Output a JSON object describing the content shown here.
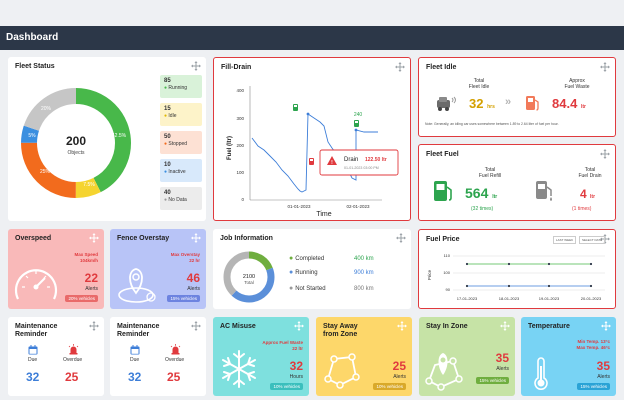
{
  "header": {
    "title": "Dashboard"
  },
  "fleet_status": {
    "title": "Fleet Status",
    "center_value": "200",
    "center_label": "Objects",
    "segments": [
      {
        "label": "42.5%",
        "color": "#48b84a"
      },
      {
        "label": "7.5%",
        "color": "#f5d430"
      },
      {
        "label": "25%",
        "color": "#f26b1d"
      },
      {
        "label": "5%",
        "color": "#3b8fe0"
      },
      {
        "label": "20%",
        "color": "#c6c6c6"
      }
    ],
    "legend": [
      {
        "count": "85",
        "label": "Running",
        "bg": "#d9f2d9",
        "dot": "#48b84a"
      },
      {
        "count": "15",
        "label": "Idle",
        "bg": "#fdf3c9",
        "dot": "#f5d430"
      },
      {
        "count": "50",
        "label": "Stopped",
        "bg": "#fde1d4",
        "dot": "#f26b1d"
      },
      {
        "count": "10",
        "label": "Inactive",
        "bg": "#d8e9fb",
        "dot": "#3b8fe0"
      },
      {
        "count": "40",
        "label": "No Data",
        "bg": "#ececec",
        "dot": "#9a9a9a"
      }
    ]
  },
  "fill_drain": {
    "title": "Fill-Drain",
    "ylabel": "Fuel (ltr)",
    "xlabel": "Time",
    "yticks": [
      "0",
      "100",
      "200",
      "300",
      "400"
    ],
    "xticks": [
      "01-01-2023",
      "02-01-2023"
    ],
    "annotation_240": "240",
    "drain_label": "Drain",
    "drain_value": "122.50 ltr",
    "drain_time": "01-01-2023 03:00 PM"
  },
  "fleet_idle": {
    "title": "Fleet Idle",
    "total_label_1": "Total",
    "total_label_2": "Fleet Idle",
    "total_value": "32",
    "total_unit": "hrs",
    "waste_label_1": "Approx",
    "waste_label_2": "Fuel Waste",
    "waste_value": "84.4",
    "waste_unit": "ltr",
    "note": "Note: Generally, an idling car uses somewhere between 1.89 to 2.64 liter of fuel per hour."
  },
  "fleet_fuel": {
    "title": "Fleet Fuel",
    "refill_label_1": "Total",
    "refill_label_2": "Fuel Refill",
    "refill_value": "564",
    "refill_unit": "ltr",
    "refill_times": "(32 times)",
    "drain_label_1": "Total",
    "drain_label_2": "Fuel Drain",
    "drain_value": "4",
    "drain_unit": "ltr",
    "drain_times": "(1 times)"
  },
  "overspeed": {
    "title": "Overspeed",
    "max_label_1": "Max Speed",
    "max_label_2": "104km/h",
    "alerts_value": "22",
    "alerts_label": "Alerts",
    "pill": "20% vehicles"
  },
  "fence_overstay": {
    "title": "Fence Overstay",
    "max_label_1": "Max Overstay",
    "max_label_2": "22 hr",
    "alerts_value": "46",
    "alerts_label": "Alerts",
    "pill": "15% vehicles"
  },
  "job_information": {
    "title": "Job Information",
    "center_value": "2100",
    "center_label": "Total",
    "items": [
      {
        "label": "Completed",
        "value": "400 km",
        "color": "#6fae3f"
      },
      {
        "label": "Running",
        "value": "900 km",
        "color": "#5b8fd9"
      },
      {
        "label": "Not Started",
        "value": "800 km",
        "color": "#9a9a9a"
      }
    ]
  },
  "fuel_price": {
    "title": "Fuel Price",
    "ylabel": "Price",
    "yticks": [
      "90",
      "100",
      "110"
    ],
    "xticks": [
      "17-01-2023",
      "18-01-2023",
      "19-01-2023",
      "20-01-2023"
    ],
    "legend_1": "LAST WEEK",
    "legend_2": "SELECT DATE"
  },
  "maintenance_1": {
    "title_1": "Maintenance",
    "title_2": "Reminder",
    "due_label": "Due",
    "due_value": "32",
    "overdue_label": "Overdue",
    "overdue_value": "25"
  },
  "maintenance_2": {
    "title_1": "Maintenance",
    "title_2": "Reminder",
    "due_label": "Due",
    "due_value": "32",
    "overdue_label": "Overdue",
    "overdue_value": "25"
  },
  "ac_misuse": {
    "title": "AC Misuse",
    "max_label_1": "Approx Fuel Waste",
    "max_label_2": "22 ltr",
    "value": "32",
    "unit": "Hours",
    "pill": "10% vehicles"
  },
  "stay_away": {
    "title_1": "Stay Away",
    "title_2": "from Zone",
    "value": "25",
    "unit": "Alerts",
    "pill": "10% vehicles"
  },
  "stay_in_zone": {
    "title": "Stay In Zone",
    "value": "35",
    "unit": "Alerts",
    "pill": "15% vehicles"
  },
  "temperature": {
    "title": "Temperature",
    "min_label": "Min Temp. 13°c",
    "max_label": "Max Temp. 46°c",
    "value": "35",
    "unit": "Alerts",
    "pill": "15% vehicles"
  }
}
